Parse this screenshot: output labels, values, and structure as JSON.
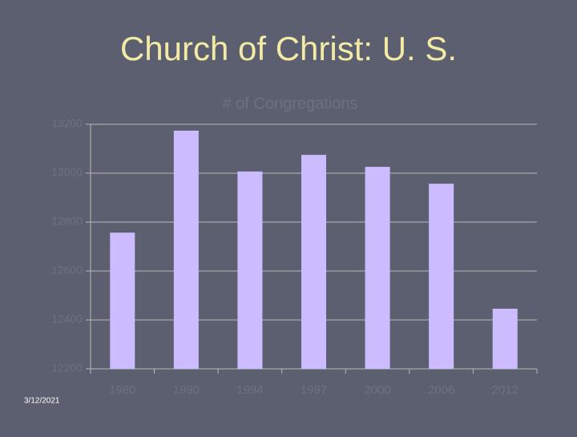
{
  "slide": {
    "title": "Church of Christ: U. S.",
    "date": "3/12/2021"
  },
  "chart_data": {
    "type": "bar",
    "title": "# of Congregations",
    "categories": [
      "1980",
      "1990",
      "1994",
      "1997",
      "2000",
      "2006",
      "2012"
    ],
    "values": [
      12757,
      13174,
      13007,
      13075,
      13026,
      12957,
      12446
    ],
    "color": "#ccbbff",
    "ylim": [
      12200,
      13200
    ],
    "yticks": [
      12200,
      12400,
      12600,
      12800,
      13000,
      13200
    ],
    "grid": true
  }
}
